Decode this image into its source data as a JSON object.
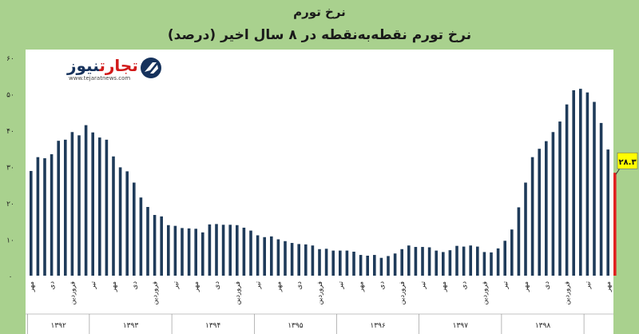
{
  "title": "نرخ تورم",
  "subtitle": "نرخ تورم نقطه‌به‌نقطه در ۸ سال اخیر (درصد)",
  "logo": {
    "name_red": "تجارت",
    "name_dark": "نیوز",
    "url": "www.tejaratnews.com",
    "icon": "tejaratnews-logo-icon"
  },
  "colors": {
    "background": "#a9d18e",
    "plot": "#ffffff",
    "bar": "#1f3b5a",
    "highlight": "#e0201f",
    "callout": "#ffff00"
  },
  "chart_data": {
    "type": "bar",
    "ylim": [
      0,
      60
    ],
    "y_ticks": [
      0,
      10,
      20,
      30,
      40,
      50,
      60
    ],
    "y_tick_labels": [
      "۰",
      "۱۰",
      "۲۰",
      "۳۰",
      "۴۰",
      "۵۰",
      "۶۰"
    ],
    "grid": false,
    "values": [
      28.8,
      32.6,
      32.3,
      33.4,
      37.1,
      37.4,
      39.5,
      38.6,
      41.4,
      39.4,
      38.0,
      37.4,
      32.8,
      29.8,
      28.7,
      25.6,
      21.5,
      18.9,
      16.7,
      16.3,
      13.9,
      13.7,
      13.1,
      13.0,
      12.9,
      11.9,
      14.1,
      14.2,
      14.0,
      14.0,
      13.9,
      13.2,
      12.4,
      11.1,
      10.6,
      10.8,
      10.0,
      9.5,
      9.0,
      8.7,
      8.6,
      8.3,
      7.3,
      7.4,
      6.9,
      6.9,
      6.9,
      6.6,
      5.7,
      5.5,
      5.7,
      4.9,
      5.4,
      6.1,
      7.3,
      8.3,
      7.9,
      7.9,
      7.8,
      6.9,
      6.5,
      7.0,
      8.2,
      8.0,
      8.3,
      8.0,
      6.5,
      6.4,
      7.5,
      9.6,
      12.7,
      18.8,
      25.6,
      32.6,
      34.9,
      37.0,
      39.5,
      42.4,
      47.1,
      51.0,
      51.4,
      50.4,
      47.8,
      42.0,
      34.7
    ],
    "highlight": {
      "value": 28.3,
      "label": "۲۸.۳"
    },
    "month_ticks": [
      "مهر",
      "دی",
      "فروردین",
      "تیر",
      "مهر",
      "دی",
      "فروردین",
      "تیر",
      "مهر",
      "دی",
      "فروردین",
      "تیر",
      "مهر",
      "دی",
      "فروردین",
      "تیر",
      "مهر",
      "دی",
      "فروردین",
      "تیر",
      "مهر",
      "دی",
      "فروردین",
      "تیر",
      "مهر",
      "دی",
      "فروردین",
      "تیر",
      "مهر"
    ],
    "years": [
      "۱۳۹۲",
      "۱۳۹۳",
      "۱۳۹۴",
      "۱۳۹۵",
      "۱۳۹۶",
      "۱۳۹۷",
      "۱۳۹۸"
    ]
  }
}
